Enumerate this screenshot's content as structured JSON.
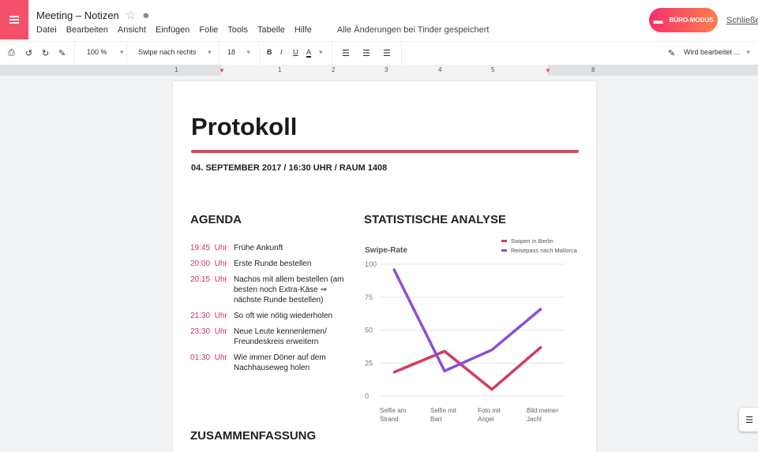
{
  "app": {
    "title": "Meeting – Notizen",
    "menus": [
      "Datei",
      "Bearbeiten",
      "Ansicht",
      "Einfügen",
      "Folie",
      "Tools",
      "Tabelle",
      "Hilfe"
    ],
    "saved_status": "Alle Änderungen bei Tinder gespeichert",
    "buero_label": "BÜRO-MODUS",
    "close_label": "Schließen",
    "accent": "#f4506a"
  },
  "toolbar": {
    "zoom": "100 %",
    "style": "Swipe nach rechts",
    "font_size": "18",
    "bold": "B",
    "italic": "I",
    "underline": "U",
    "color": "A",
    "mode": "Wird bearbeitet ..."
  },
  "ruler": [
    "1",
    "1",
    "2",
    "3",
    "4",
    "5",
    "8"
  ],
  "doc": {
    "title": "Protokoll",
    "subtitle": "04. SEPTEMBER 2017 / 16:30 UHR / RAUM 1408",
    "agenda_heading": "AGENDA",
    "stats_heading": "STATISTISCHE ANALYSE",
    "summary_heading": "ZUSAMMENFASSUNG",
    "agenda": [
      {
        "time": "19:45",
        "unit": "Uhr",
        "text": "Frühe Ankunft"
      },
      {
        "time": "20:00",
        "unit": "Uhr",
        "text": "Erste Runde bestellen"
      },
      {
        "time": "20:15",
        "unit": "Uhr",
        "text": "Nachos mit allem bestellen (am besten noch Extra-Käse ⇒ nächste Runde bestellen)"
      },
      {
        "time": "21:30",
        "unit": "Uhr",
        "text": "So oft wie nötig wiederholen"
      },
      {
        "time": "23:30",
        "unit": "Uhr",
        "text": "Neue Leute kennenlernen/ Freundeskreis erweitern"
      },
      {
        "time": "01:30",
        "unit": "Uhr",
        "text": "Wie immer Döner auf dem Nachhauseweg holen"
      }
    ]
  },
  "chart_data": {
    "type": "line",
    "title": "Swipe-Rate",
    "categories": [
      "Selfie am Strand",
      "Selfie mit Bart",
      "Foto mit Angel",
      "Bild meiner Jacht"
    ],
    "yticks": [
      "0",
      "25",
      "50",
      "75",
      "100"
    ],
    "ylim": [
      0,
      100
    ],
    "grid": true,
    "legend": "top-right",
    "series": [
      {
        "name": "Swipen in Berlin",
        "values": [
          18,
          34,
          5,
          37
        ],
        "color": "#d23c5f"
      },
      {
        "name": "Reisepass nach Mallorca",
        "values": [
          96,
          19,
          35,
          66
        ],
        "color": "#8a4fd8"
      }
    ]
  }
}
